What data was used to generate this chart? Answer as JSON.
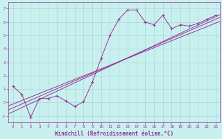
{
  "xlabel": "Windchill (Refroidissement éolien,°C)",
  "background_color": "#c8f0ee",
  "grid_color": "#a8d8d4",
  "line_color": "#993399",
  "x_data": [
    0,
    1,
    2,
    3,
    4,
    5,
    6,
    7,
    8,
    9,
    10,
    11,
    12,
    13,
    14,
    15,
    16,
    17,
    18,
    19,
    20,
    21,
    22,
    23
  ],
  "y_main": [
    1.2,
    0.6,
    -1.1,
    0.3,
    0.3,
    0.5,
    0.1,
    -0.3,
    0.05,
    1.5,
    3.3,
    5.0,
    6.2,
    6.9,
    6.9,
    6.0,
    5.8,
    6.5,
    5.5,
    5.8,
    5.7,
    5.9,
    6.2,
    6.5
  ],
  "reg_line1_pts": [
    [
      -0.5,
      -0.85
    ],
    [
      23.5,
      6.55
    ]
  ],
  "reg_line2_pts": [
    [
      -0.5,
      -0.55
    ],
    [
      23.5,
      6.35
    ]
  ],
  "reg_line3_pts": [
    [
      -0.5,
      -0.25
    ],
    [
      23.5,
      6.05
    ]
  ],
  "xlim": [
    -0.5,
    23.5
  ],
  "ylim": [
    -1.5,
    7.5
  ],
  "yticks": [
    -1,
    0,
    1,
    2,
    3,
    4,
    5,
    6,
    7
  ],
  "xticks": [
    0,
    1,
    2,
    3,
    4,
    5,
    6,
    7,
    8,
    9,
    10,
    11,
    12,
    13,
    14,
    15,
    16,
    17,
    18,
    19,
    20,
    21,
    22,
    23
  ]
}
